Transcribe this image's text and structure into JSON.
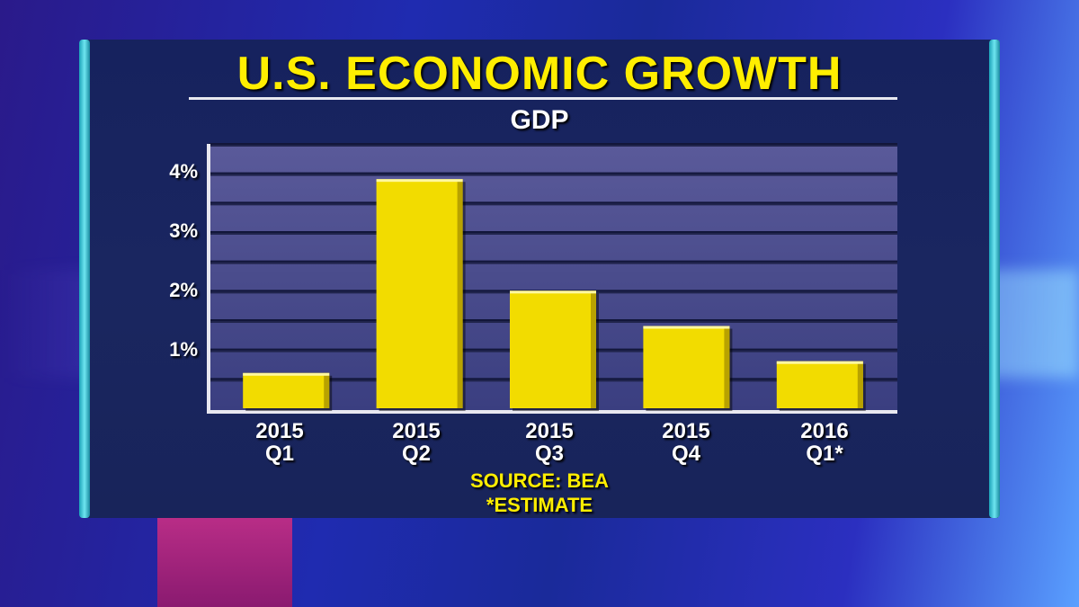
{
  "colors": {
    "title": "#ffee00",
    "bar": "#f2dc00",
    "bar_shade": "#b8a200",
    "text": "#ffffff",
    "panel": "#18245c"
  },
  "chart_data": {
    "type": "bar",
    "title": "U.S. ECONOMIC GROWTH",
    "subtitle": "GDP",
    "categories": [
      {
        "line1": "2015",
        "line2": "Q1"
      },
      {
        "line1": "2015",
        "line2": "Q2"
      },
      {
        "line1": "2015",
        "line2": "Q3"
      },
      {
        "line1": "2015",
        "line2": "Q4"
      },
      {
        "line1": "2016",
        "line2": "Q1*"
      }
    ],
    "values": [
      0.6,
      3.9,
      2.0,
      1.4,
      0.8
    ],
    "ylim": [
      0,
      4.5
    ],
    "yticks": [
      {
        "value": 1,
        "label": "1%"
      },
      {
        "value": 2,
        "label": "2%"
      },
      {
        "value": 3,
        "label": "3%"
      },
      {
        "value": 4,
        "label": "4%"
      }
    ],
    "grid_step": 0.5,
    "grid": true,
    "source": "SOURCE: BEA",
    "note": "*ESTIMATE"
  }
}
